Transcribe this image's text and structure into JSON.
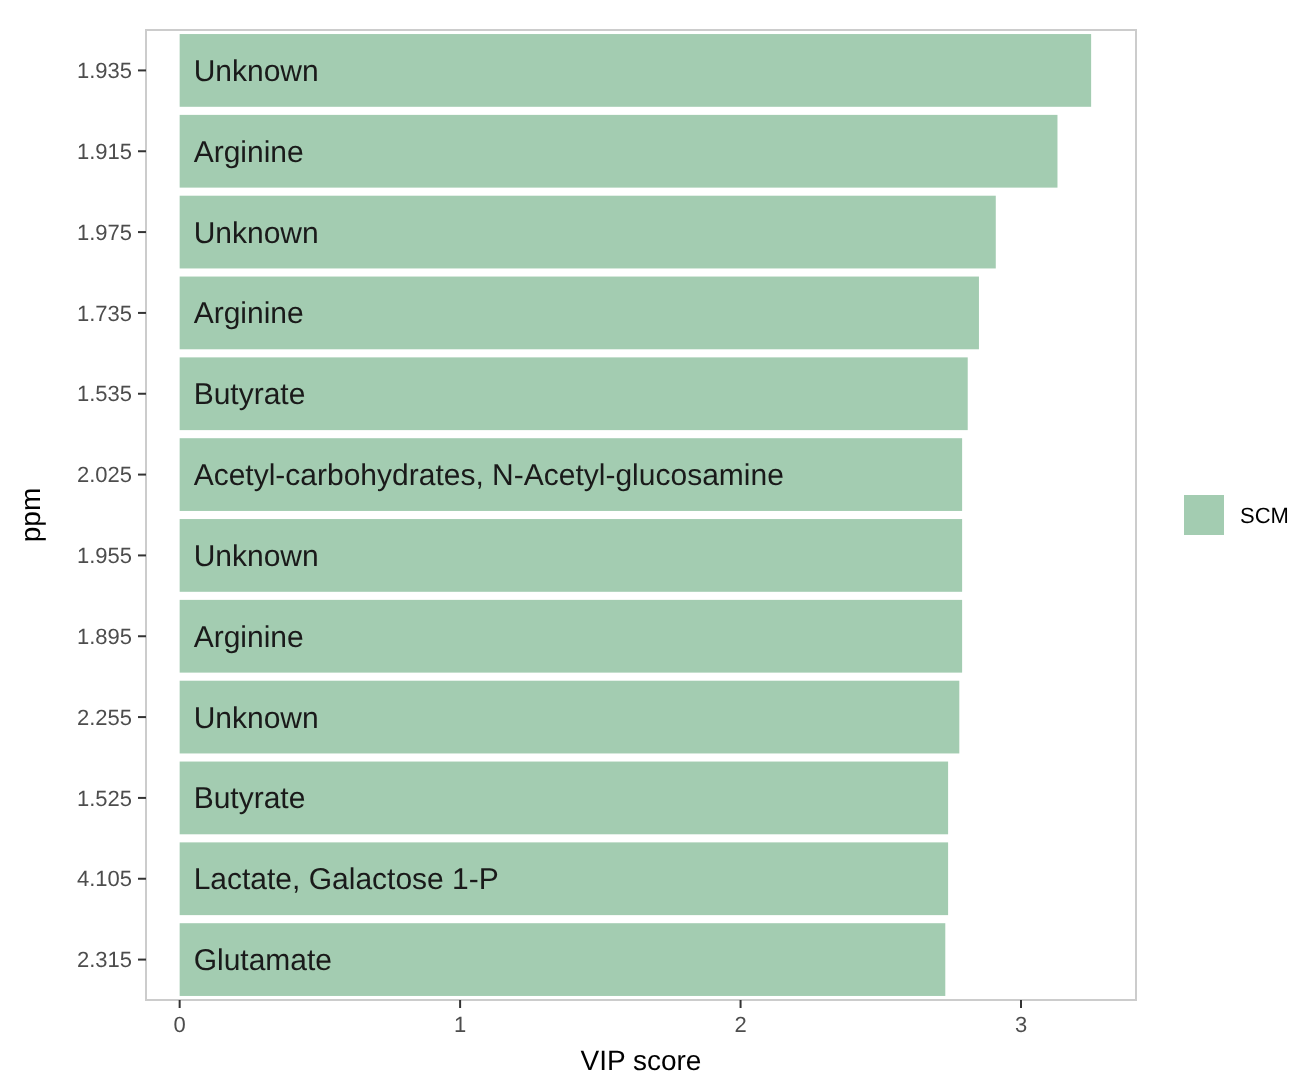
{
  "chart_data": {
    "type": "bar",
    "orientation": "horizontal",
    "xlabel": "VIP score",
    "ylabel": "ppm",
    "categories": [
      "1.935",
      "1.915",
      "1.975",
      "1.735",
      "1.535",
      "2.025",
      "1.955",
      "1.895",
      "2.255",
      "1.525",
      "4.105",
      "2.315"
    ],
    "series": [
      {
        "name": "SCM",
        "color": "#a3ccb1",
        "values": [
          3.25,
          3.13,
          2.91,
          2.85,
          2.81,
          2.79,
          2.79,
          2.79,
          2.78,
          2.74,
          2.74,
          2.73
        ]
      }
    ],
    "xlim": [
      -0.12,
      3.41
    ],
    "xticks": [
      0,
      1,
      2,
      3
    ],
    "grid": false,
    "legend": "right",
    "annotations": [
      {
        "text": "Unknown",
        "y": "1.935"
      },
      {
        "text": "Arginine",
        "y": "1.915"
      },
      {
        "text": "Unknown",
        "y": "1.975"
      },
      {
        "text": "Arginine",
        "y": "1.735"
      },
      {
        "text": "Butyrate",
        "y": "1.535"
      },
      {
        "text": "Acetyl-carbohydrates, N-Acetyl-glucosamine",
        "y": "2.025"
      },
      {
        "text": "Unknown",
        "y": "1.955"
      },
      {
        "text": "Arginine",
        "y": "1.895"
      },
      {
        "text": "Unknown",
        "y": "2.255"
      },
      {
        "text": "Butyrate",
        "y": "1.525"
      },
      {
        "text": "Lactate, Galactose 1-P",
        "y": "4.105"
      },
      {
        "text": "Glutamate",
        "y": "2.315"
      }
    ]
  }
}
